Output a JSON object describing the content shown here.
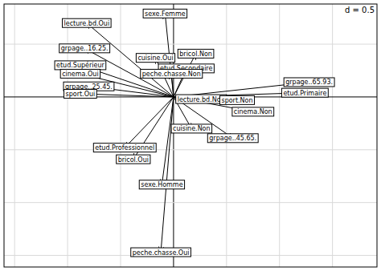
{
  "chart_data": {
    "type": "arrow",
    "annotation": "d = 0.5",
    "labels": [
      "lecture.bd.Oui",
      "sexe.Femme",
      "grpage..16.25.",
      "cuisine.Oui",
      "bricol.Non",
      "etud.Supérieur",
      "etud.Secondaire",
      "cinema.Oui",
      "peche.chasse.Non",
      "grpage..25.45.",
      "sport.Oui",
      "grpage..65.93.",
      "etud.Primaire",
      "lecture.bd.Non",
      "sport.Non",
      "cinema.Non",
      "cuisine.Non",
      "grpage..45.65.",
      "etud.Professionnel",
      "bricol.Oui",
      "sexe.Homme",
      "peche.chasse.Oui"
    ],
    "x": [
      -0.82,
      -0.08,
      -0.84,
      -0.17,
      0.21,
      -0.88,
      0.12,
      -0.88,
      -0.02,
      -0.8,
      -0.88,
      1.28,
      1.24,
      0.26,
      0.6,
      0.75,
      0.17,
      0.56,
      -0.46,
      -0.38,
      -0.11,
      -0.12
    ],
    "y": [
      0.7,
      0.79,
      0.46,
      0.37,
      0.41,
      0.3,
      0.27,
      0.22,
      0.22,
      0.1,
      0.03,
      0.14,
      0.04,
      -0.02,
      -0.03,
      -0.14,
      -0.3,
      -0.39,
      -0.48,
      -0.59,
      -0.83,
      -1.47
    ],
    "xlim": [
      -1.6,
      1.92
    ],
    "ylim": [
      -1.61,
      0.88
    ],
    "xticks": [
      -1.5,
      -1,
      -0.5,
      0,
      0.5,
      1,
      1.5
    ],
    "yticks": [
      -1.5,
      -1,
      -0.5,
      0,
      0.5
    ],
    "grid": true,
    "tick_labels": false
  }
}
